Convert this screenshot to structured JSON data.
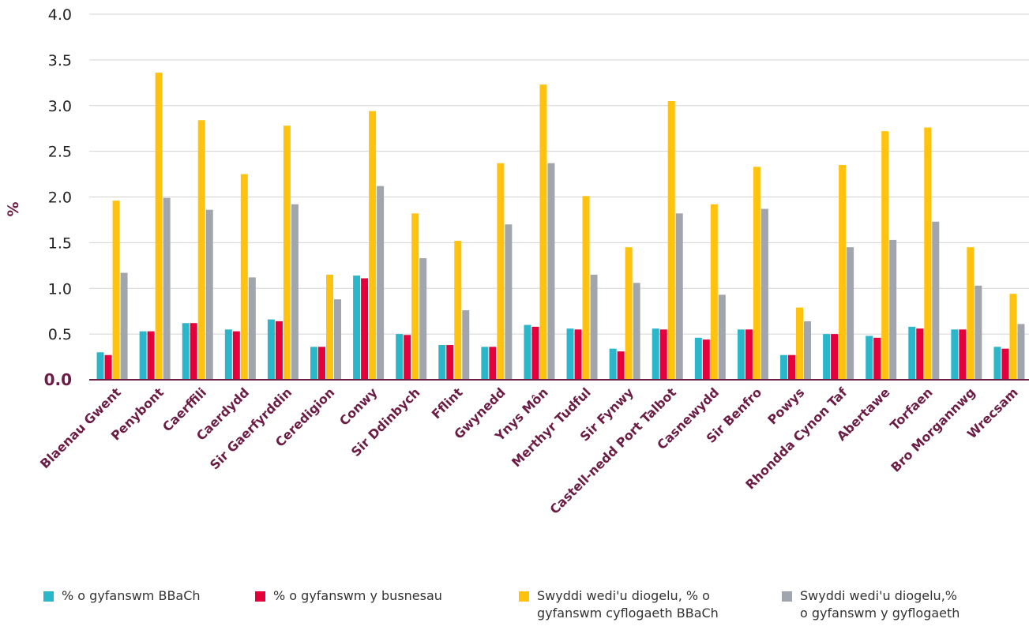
{
  "chart_data": {
    "type": "bar",
    "ylabel": "%",
    "ylim": [
      0,
      4
    ],
    "yticks": [
      "0.0",
      "0.5",
      "1.0",
      "1.5",
      "2.0",
      "2.5",
      "3.0",
      "3.5",
      "4.0"
    ],
    "grid": true,
    "legend_position": "bottom",
    "categories": [
      "Blaenau Gwent",
      "Penybont",
      "Caerffili",
      "Caerdydd",
      "Sir Gaerfyrddin",
      "Ceredigion",
      "Conwy",
      "Sir Ddinbych",
      "Fflint",
      "Gwynedd",
      "Ynys Môn",
      "Merthyr Tudful",
      "Sir Fynwy",
      "Castell-nedd Port Talbot",
      "Casnewydd",
      "Sir Benfro",
      "Powys",
      "Rhondda Cynon Taf",
      "Abertawe",
      "Torfaen",
      "Bro Morgannwg",
      "Wrecsam"
    ],
    "series": [
      {
        "name": "% o gyfanswm BBaCh",
        "name_lines": [
          "% o gyfanswm BBaCh"
        ],
        "color": "#2ab7ca",
        "values": [
          0.3,
          0.53,
          0.62,
          0.55,
          0.66,
          0.36,
          1.14,
          0.5,
          0.38,
          0.36,
          0.6,
          0.56,
          0.34,
          0.56,
          0.46,
          0.55,
          0.27,
          0.5,
          0.48,
          0.58,
          0.55,
          0.36
        ]
      },
      {
        "name": "% o gyfanswm y busnesau",
        "name_lines": [
          "% o gyfanswm y busnesau"
        ],
        "color": "#e4003b",
        "values": [
          0.27,
          0.53,
          0.62,
          0.53,
          0.64,
          0.36,
          1.11,
          0.49,
          0.38,
          0.36,
          0.58,
          0.55,
          0.31,
          0.55,
          0.44,
          0.55,
          0.27,
          0.5,
          0.46,
          0.56,
          0.55,
          0.34
        ]
      },
      {
        "name": "Swyddi wedi'u diogelu, % o gyfanswm cyflogaeth BBaCh",
        "name_lines": [
          "Swyddi wedi'u diogelu, % o",
          "gyfanswm cyflogaeth BBaCh"
        ],
        "color": "#ffc20e",
        "values": [
          1.96,
          3.36,
          2.84,
          2.25,
          2.78,
          1.15,
          2.94,
          1.82,
          1.52,
          2.37,
          3.23,
          2.01,
          1.45,
          3.05,
          1.92,
          2.33,
          0.79,
          2.35,
          2.72,
          2.76,
          1.45,
          0.94
        ]
      },
      {
        "name": "Swyddi wedi'u diogelu,% o gyfanswm y gyflogaeth",
        "name_lines": [
          "Swyddi wedi'u diogelu,%",
          "o gyfanswm y gyflogaeth"
        ],
        "color": "#a1a5ae",
        "values": [
          1.17,
          1.99,
          1.86,
          1.12,
          1.92,
          0.88,
          2.12,
          1.33,
          0.76,
          1.7,
          2.37,
          1.15,
          1.06,
          1.82,
          0.93,
          1.87,
          0.64,
          1.45,
          1.53,
          1.73,
          1.03,
          0.61
        ]
      }
    ]
  }
}
